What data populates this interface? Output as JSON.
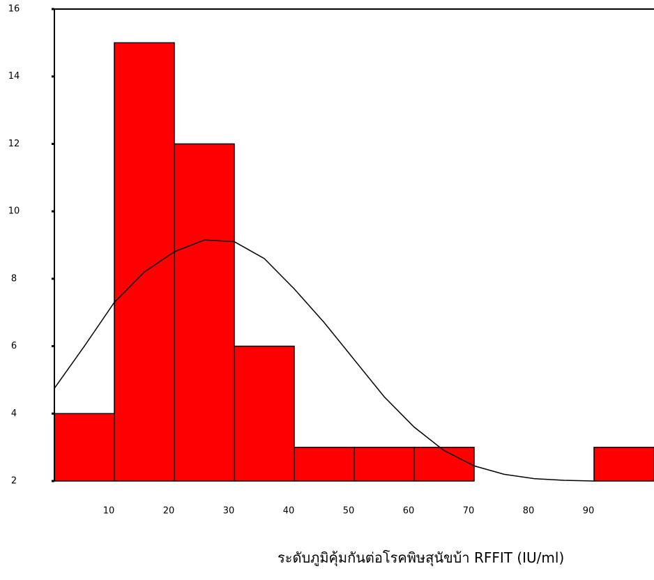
{
  "chart_data": {
    "type": "histogram",
    "xlabel": "ระดับภูมิคุ้มกันต่อโรคพิษสุนัขบ้า RFFIT (IU/ml)",
    "bins": [
      0,
      10,
      20,
      30,
      40,
      50,
      60,
      70,
      80,
      90,
      100
    ],
    "values": [
      4,
      15,
      12,
      6,
      3,
      3,
      3,
      2,
      2,
      3
    ],
    "color": "#ff0000",
    "xlim": [
      0,
      100
    ],
    "xticks": [
      10,
      20,
      30,
      40,
      50,
      60,
      70,
      80,
      90
    ],
    "ylim": [
      2,
      16
    ],
    "yticks": [
      2,
      4,
      6,
      8,
      10,
      12,
      14,
      16
    ],
    "curve": {
      "x": [
        0,
        5,
        10,
        15,
        20,
        25,
        30,
        35,
        40,
        45,
        50,
        55,
        60,
        65,
        70,
        75,
        80,
        85,
        90
      ],
      "y": [
        4.75,
        6.0,
        7.3,
        8.2,
        8.8,
        9.15,
        9.1,
        8.6,
        7.7,
        6.7,
        5.6,
        4.5,
        3.6,
        2.9,
        2.45,
        2.2,
        2.07,
        2.02,
        2.0
      ],
      "color": "#000000"
    }
  }
}
